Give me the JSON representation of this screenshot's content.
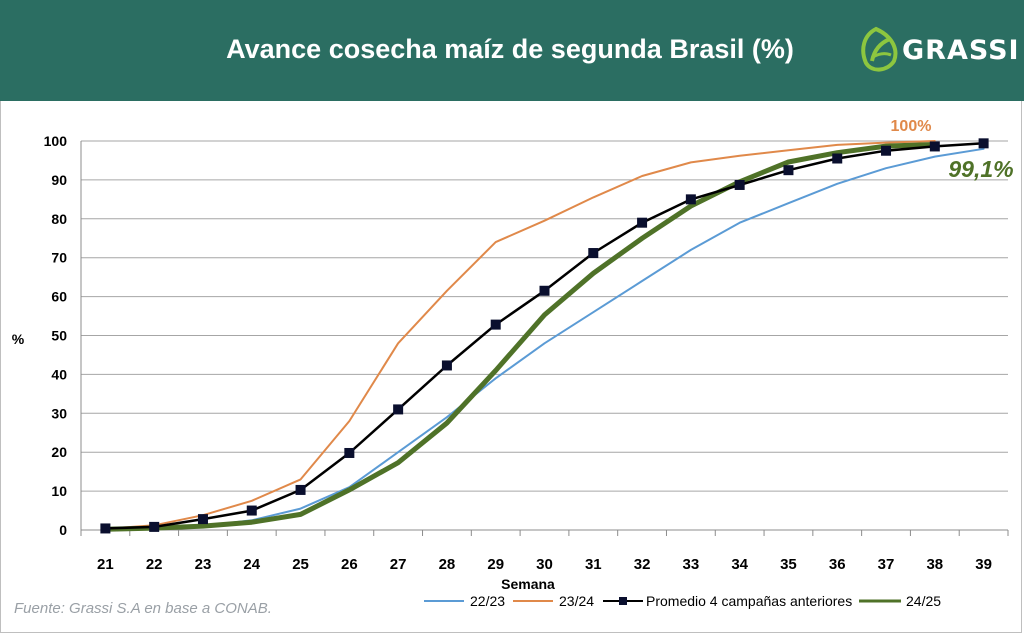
{
  "header": {
    "title": "Avance cosecha maíz de segunda Brasil (%)",
    "logo_text": "GRASSI",
    "background_color": "#2b6e62"
  },
  "source": "Fuente: Grassi S.A en base a CONAB.",
  "annotations": {
    "label_2324": "100%",
    "label_2425": "99,1%"
  },
  "chart_data": {
    "type": "line",
    "xlabel": "Semana",
    "ylabel": "%",
    "ylim": [
      0,
      100
    ],
    "yticks": [
      "0",
      "10",
      "20",
      "30",
      "40",
      "50",
      "60",
      "70",
      "80",
      "90",
      "100"
    ],
    "x": [
      "21",
      "22",
      "23",
      "24",
      "25",
      "26",
      "27",
      "28",
      "29",
      "30",
      "31",
      "32",
      "33",
      "34",
      "35",
      "36",
      "37",
      "38",
      "39"
    ],
    "grid": true,
    "legend_position": "bottom",
    "series": [
      {
        "name": "22/23",
        "color": "#5b9bd5",
        "values": [
          0.3,
          0.5,
          1.0,
          2.5,
          5.5,
          11,
          20,
          29,
          39,
          48,
          56,
          64,
          72,
          79,
          84,
          89,
          93,
          96,
          98
        ]
      },
      {
        "name": "23/24",
        "color": "#e0894a",
        "values": [
          0.3,
          1.2,
          3.8,
          7.5,
          13,
          28,
          48,
          61.5,
          74,
          79.5,
          85.5,
          91,
          94.5,
          96.2,
          97.6,
          99,
          99.6,
          100,
          null
        ]
      },
      {
        "name": "Promedio 4 campañas anteriores",
        "color": "#000000",
        "values": [
          0.4,
          0.8,
          2.8,
          5,
          10.3,
          19.8,
          31,
          42.3,
          52.8,
          61.5,
          71.2,
          79,
          85,
          88.7,
          92.5,
          95.5,
          97.5,
          98.6,
          99.4
        ]
      },
      {
        "name": "24/25",
        "color": "#4f7228",
        "values": [
          0.2,
          0.5,
          1.0,
          2.0,
          4.0,
          10.3,
          17.3,
          27.5,
          41,
          55.3,
          66,
          75,
          83.3,
          89.5,
          94.6,
          97,
          98.7,
          99.1,
          null
        ]
      }
    ]
  }
}
